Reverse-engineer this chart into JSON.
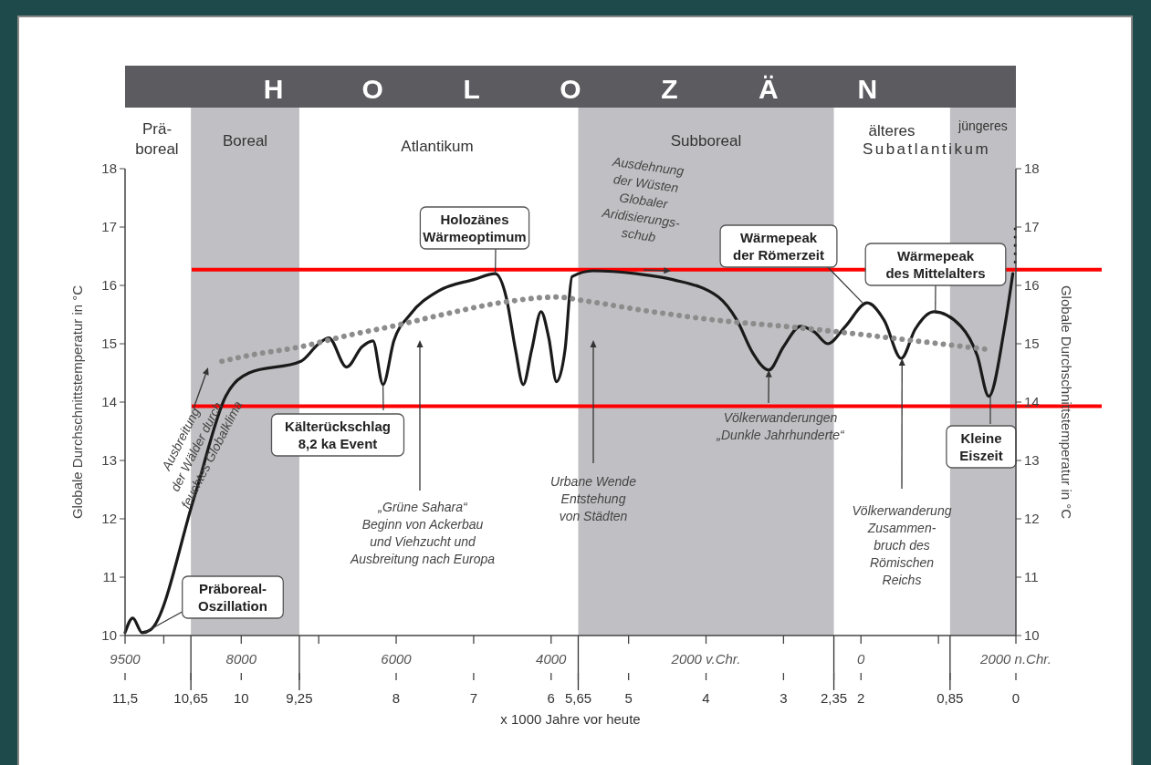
{
  "chart_data": {
    "type": "line",
    "title": "H O L O Z Ä N",
    "xlabel": "x 1000 Jahre vor heute",
    "ylabel": "Globale Durchschnittstemperatur in °C",
    "y2label": "Globale Durchschnittstemperatur in °C",
    "xlim": [
      11.5,
      0
    ],
    "xticks": [
      {
        "value": 11.5,
        "label": "11,5"
      },
      {
        "value": 10.65,
        "label": "10,65"
      },
      10,
      {
        "value": 9.25,
        "label": "9,25"
      },
      8,
      7,
      6,
      {
        "value": 5.65,
        "label": "5,65"
      },
      5,
      4,
      3,
      {
        "value": 2.35,
        "label": "2,35"
      },
      2,
      {
        "value": 0.85,
        "label": "0,85"
      },
      0
    ],
    "x2lim": [
      -9500,
      2000
    ],
    "x2ticks": [
      {
        "value": -9500,
        "label": "9500"
      },
      {
        "value": -9000,
        "label": null
      },
      {
        "value": -8000,
        "label": "8000"
      },
      {
        "value": -7000,
        "label": null
      },
      {
        "value": -6000,
        "label": "6000"
      },
      {
        "value": -5000,
        "label": null
      },
      {
        "value": -4000,
        "label": "4000"
      },
      {
        "value": -3000,
        "label": null
      },
      {
        "value": -2000,
        "label": "2000 v.Chr."
      },
      {
        "value": -1000,
        "label": null
      },
      0,
      {
        "value": 1000,
        "label": null
      },
      {
        "value": 2000,
        "label": "2000 n.Chr."
      }
    ],
    "ylim": [
      10,
      18
    ],
    "yticks": [
      10,
      11,
      12,
      13,
      14,
      15,
      16,
      17,
      18
    ],
    "y2lim": [
      10,
      18
    ],
    "y2ticks": [
      10,
      11,
      12,
      13,
      14,
      15,
      16,
      17,
      18
    ],
    "series": [
      {
        "color": "#1a1a1a",
        "line_style": "solid",
        "x": [
          11.5,
          11.4,
          11.28,
          11.17,
          10.6,
          10.2,
          9.9,
          9.23,
          9.0,
          8.87,
          8.64,
          8.44,
          8.3,
          8.17,
          8.03,
          7.82,
          7.46,
          7.0,
          6.72,
          6.58,
          6.46,
          6.36,
          6.25,
          6.13,
          6.03,
          5.93,
          5.82,
          5.73,
          5.46,
          4.9,
          4.43,
          3.84,
          3.6,
          3.4,
          3.19,
          3.0,
          2.78,
          2.6,
          2.43,
          2.2,
          1.92,
          1.7,
          1.48,
          1.3,
          1.06,
          0.71,
          0.5,
          0.35,
          0.15,
          0.04
        ],
        "values": [
          10.05,
          10.3,
          10.05,
          10.1,
          12.4,
          14.1,
          14.5,
          14.7,
          15.0,
          15.1,
          14.6,
          14.95,
          15.05,
          14.3,
          15.05,
          15.5,
          15.9,
          16.1,
          16.2,
          15.8,
          14.9,
          14.3,
          14.9,
          15.55,
          15.1,
          14.35,
          14.9,
          16.15,
          16.25,
          16.2,
          16.1,
          15.8,
          15.4,
          14.85,
          14.55,
          14.95,
          15.3,
          15.2,
          15.0,
          15.3,
          15.7,
          15.4,
          14.75,
          15.25,
          15.55,
          15.3,
          14.8,
          14.1,
          15.25,
          16.2
        ]
      },
      {
        "color": "#8c8c8c",
        "line_style": "dotted",
        "x": [
          10.25,
          9.9,
          9.23,
          8.6,
          8.05,
          7.4,
          6.67,
          5.93,
          5.54,
          4.7,
          3.84,
          3.0,
          2.27,
          1.3,
          0.35
        ],
        "values": [
          14.7,
          14.8,
          14.95,
          15.15,
          15.3,
          15.5,
          15.7,
          15.8,
          15.73,
          15.55,
          15.4,
          15.3,
          15.2,
          15.05,
          14.9
        ]
      },
      {
        "color": "#1a1a1a",
        "line_style": "dotted",
        "x": [
          0.01,
          0.01
        ],
        "values": [
          16.4,
          17.0
        ]
      }
    ],
    "bands": [
      {
        "axis": "x",
        "from": 10.65,
        "to": 9.25,
        "label": "Boreal",
        "color": "#c0c0c4"
      },
      {
        "axis": "x",
        "from": 5.65,
        "to": 2.35,
        "label": "Subboreal",
        "color": "#c0c0c4"
      },
      {
        "axis": "x",
        "from": 0.85,
        "to": 0,
        "label": "jüngeres",
        "color": "#c0c0c4"
      }
    ],
    "ref_lines": [
      {
        "axis": "y",
        "value": 16.27,
        "color": "#ff0000"
      },
      {
        "axis": "y",
        "value": 13.93,
        "color": "#ff0000"
      }
    ],
    "annotations": [
      {
        "text": "Präboreal-\nOszillation",
        "x": 11.25,
        "y": 10.05
      },
      "Ausbreitung\nder Wälder durch\nfeuchtes Globalklima",
      {
        "text": "Kälterückschlag\n8,2 ka Event",
        "x": 8.17,
        "y": 14.3
      },
      "„Grüne Sahara“\nBeginn von Ackerbau\nund Viehzucht und\nAusbreitung nach Europa",
      {
        "text": "Holozänes\nWärmeoptimum",
        "x": 6.72,
        "y": 16.2
      },
      "Urbane Wende\nEntstehung\nvon Städten",
      {
        "text": "Ausdehnung\nder Wüsten\nGlobaler\nAridisierungs-\nschub",
        "x": 4.45,
        "y": 16.25
      },
      {
        "text": "Wärmepeak\nder Römerzeit",
        "x": 1.98,
        "y": 15.7
      },
      {
        "text": "Völkerwanderungen\n„Dunkle Jahrhunderte“",
        "x": 3.19,
        "y": 14.55
      },
      {
        "text": "Wärmepeak\ndes Mittelalters",
        "x": 1.04,
        "y": 15.55
      },
      {
        "text": "Völkerwanderung\nZusammen-\nbruch des\nRömischen\nReichs",
        "x": 1.47,
        "y": 14.75
      },
      {
        "text": "Kleine\nEiszeit",
        "x": 0.33,
        "y": 14.1
      },
      "Subatlantikum",
      "Prä-\nboreal",
      "Atlantikum",
      "älteres"
    ]
  }
}
